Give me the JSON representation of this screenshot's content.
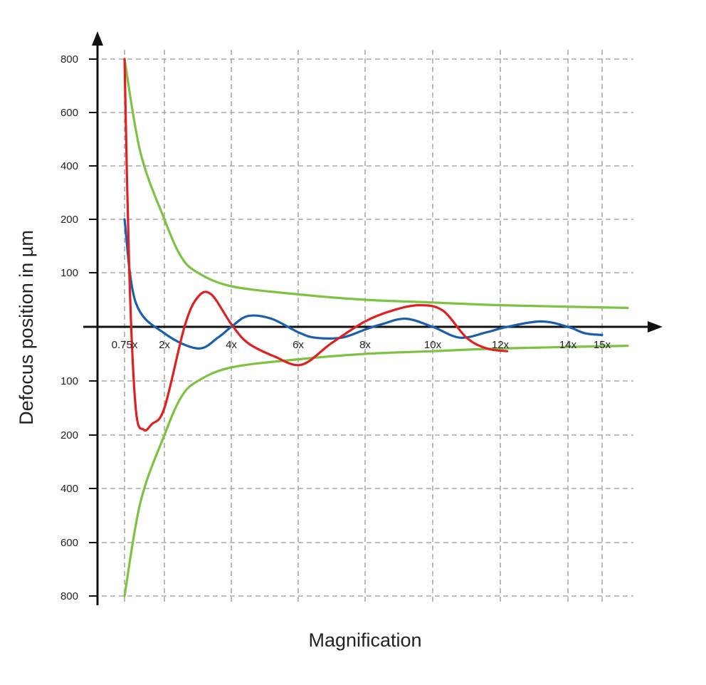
{
  "chart_data": {
    "type": "line",
    "xlabel": "Magnification",
    "ylabel": "Defocus position in µm",
    "x_ticks": [
      "0.75x",
      "2x",
      "4x",
      "6x",
      "8x",
      "10x",
      "12x",
      "14x",
      "15x"
    ],
    "y_ticks_upper": [
      "800",
      "600",
      "400",
      "200",
      "100"
    ],
    "y_ticks_lower": [
      "100",
      "200",
      "400",
      "600",
      "800"
    ],
    "grid": true,
    "legend": "none",
    "series": [
      {
        "color": "#7dc242",
        "points": [
          [
            0.75,
            800
          ],
          [
            1.25,
            450
          ],
          [
            2,
            200
          ],
          [
            2.5,
            130
          ],
          [
            3,
            100
          ],
          [
            4,
            75
          ],
          [
            6,
            60
          ],
          [
            8,
            50
          ],
          [
            10,
            45
          ],
          [
            12,
            40
          ],
          [
            15.75,
            35
          ]
        ]
      },
      {
        "color": "#7dc242",
        "points": [
          [
            0.75,
            -800
          ],
          [
            1.25,
            -450
          ],
          [
            2,
            -200
          ],
          [
            2.5,
            -130
          ],
          [
            3,
            -100
          ],
          [
            4,
            -75
          ],
          [
            6,
            -60
          ],
          [
            8,
            -50
          ],
          [
            10,
            -45
          ],
          [
            12,
            -40
          ],
          [
            15.75,
            -35
          ]
        ]
      },
      {
        "color": "#1a5fad",
        "points": [
          [
            0.75,
            200
          ],
          [
            1.1,
            45
          ],
          [
            2,
            -12
          ],
          [
            3,
            -40
          ],
          [
            3.6,
            -20
          ],
          [
            4,
            0
          ],
          [
            4.5,
            20
          ],
          [
            5.2,
            15
          ],
          [
            6,
            -10
          ],
          [
            6.5,
            -20
          ],
          [
            7.3,
            -20
          ],
          [
            8,
            -5
          ],
          [
            8.5,
            5
          ],
          [
            9.2,
            15
          ],
          [
            10,
            0
          ],
          [
            10.8,
            -20
          ],
          [
            11.6,
            -10
          ],
          [
            12.2,
            0
          ],
          [
            13.2,
            10
          ],
          [
            14,
            0
          ],
          [
            14.5,
            -12
          ],
          [
            15,
            -15
          ]
        ]
      },
      {
        "color": "#e02020",
        "points": [
          [
            0.75,
            800
          ],
          [
            0.9,
            100
          ],
          [
            1.1,
            -150
          ],
          [
            1.35,
            -190
          ],
          [
            1.6,
            -180
          ],
          [
            2,
            -150
          ],
          [
            2.6,
            0
          ],
          [
            3,
            55
          ],
          [
            3.4,
            60
          ],
          [
            4,
            5
          ],
          [
            4.5,
            -30
          ],
          [
            5.3,
            -55
          ],
          [
            6.1,
            -70
          ],
          [
            7,
            -30
          ],
          [
            8,
            10
          ],
          [
            8.8,
            30
          ],
          [
            9.6,
            40
          ],
          [
            10.3,
            30
          ],
          [
            11,
            -20
          ],
          [
            11.6,
            -40
          ],
          [
            12.2,
            -45
          ]
        ]
      }
    ]
  }
}
